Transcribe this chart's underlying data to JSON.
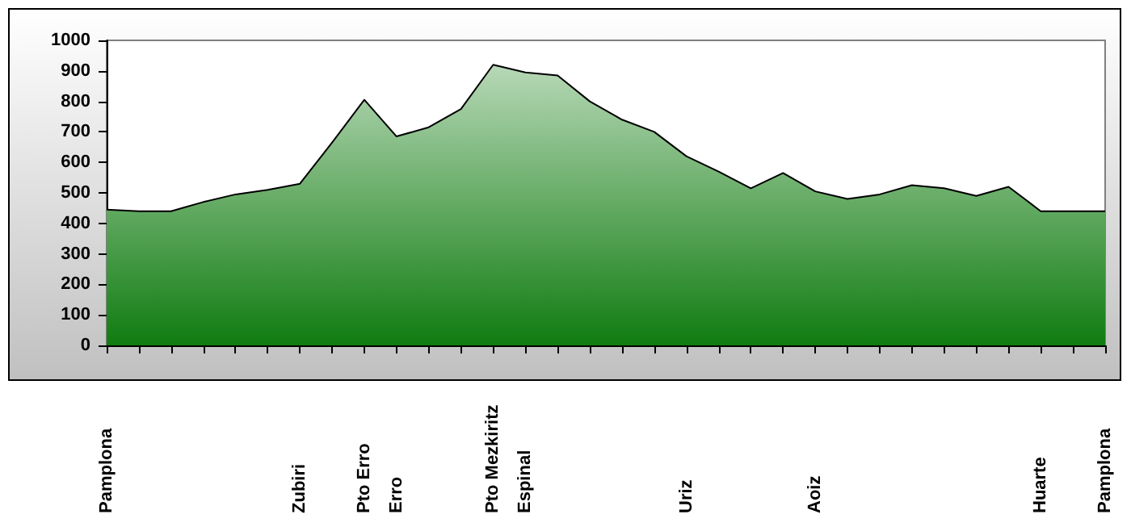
{
  "chart_data": {
    "type": "area",
    "categories": [
      "Pamplona",
      null,
      null,
      null,
      null,
      null,
      "Zubiri",
      null,
      "Pto Erro",
      "Erro",
      null,
      null,
      "Pto Mezkiritz",
      "Espinal",
      null,
      null,
      null,
      null,
      "Uriz",
      null,
      null,
      null,
      "Aoiz",
      null,
      null,
      null,
      null,
      null,
      null,
      "Huarte",
      null,
      "Pamplona"
    ],
    "series": [
      {
        "color": "#107c10",
        "values": [
          445,
          440,
          440,
          470,
          495,
          510,
          530,
          665,
          805,
          685,
          715,
          775,
          920,
          895,
          885,
          800,
          740,
          700,
          620,
          570,
          515,
          565,
          505,
          480,
          495,
          525,
          515,
          490,
          520,
          440,
          440,
          440
        ]
      }
    ],
    "ylim": [
      0,
      1000
    ],
    "yticks": [
      0,
      100,
      200,
      300,
      400,
      500,
      600,
      700,
      800,
      900,
      1000
    ],
    "grid": false,
    "marker": "none"
  }
}
